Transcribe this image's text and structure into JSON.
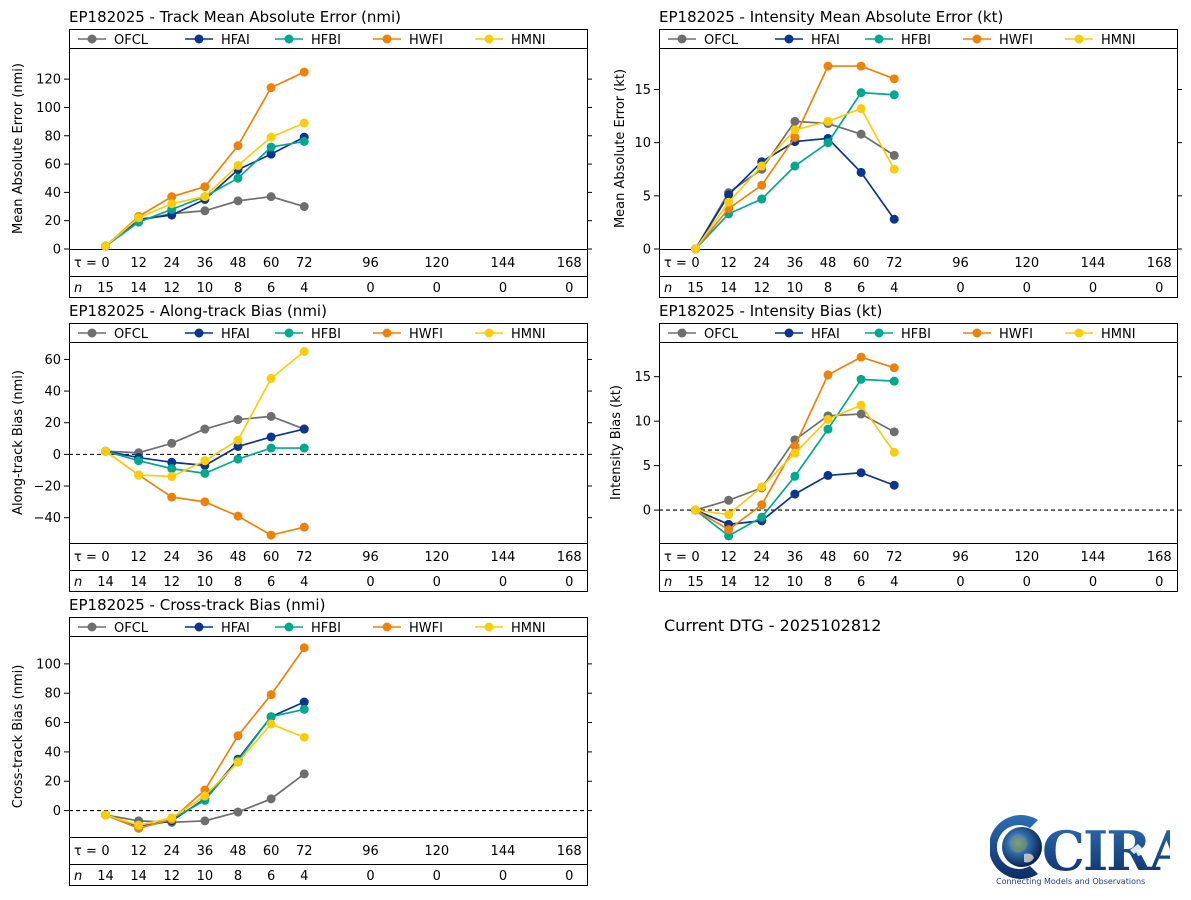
{
  "dtg_text": "Current DTG - 2025102812",
  "logo": {
    "word": "CIRA",
    "tagline": "Connecting Models and Observations"
  },
  "tau_label": "τ = ",
  "n_label": "n",
  "tau": [
    0,
    12,
    24,
    36,
    48,
    60,
    72,
    96,
    120,
    144,
    168
  ],
  "models": [
    {
      "name": "OFCL",
      "color": "#6e6e6e"
    },
    {
      "name": "HFAI",
      "color": "#0a3590"
    },
    {
      "name": "HFBI",
      "color": "#00a88f"
    },
    {
      "name": "HWFI",
      "color": "#ee8208"
    },
    {
      "name": "HMNI",
      "color": "#fccc0a"
    }
  ],
  "chart_data": [
    {
      "id": "track",
      "type": "line",
      "title": "EP182025 - Track Mean Absolute Error (nmi)",
      "ylabel": "Mean Absolute Error (nmi)",
      "x": [
        0,
        12,
        24,
        36,
        48,
        60,
        72
      ],
      "ylim": [
        0,
        142
      ],
      "yticks": [
        0,
        20,
        40,
        60,
        80,
        100,
        120
      ],
      "zero_line": false,
      "n": [
        15,
        14,
        12,
        10,
        8,
        6,
        4,
        0,
        0,
        0,
        0
      ],
      "series": [
        {
          "name": "OFCL",
          "values": [
            2,
            20,
            25,
            27,
            34,
            37,
            30
          ]
        },
        {
          "name": "HFAI",
          "values": [
            2,
            21,
            24,
            35,
            56,
            67,
            79
          ]
        },
        {
          "name": "HFBI",
          "values": [
            2,
            19,
            28,
            37,
            50,
            72,
            76
          ]
        },
        {
          "name": "HWFI",
          "values": [
            2,
            23,
            37,
            44,
            73,
            114,
            125
          ]
        },
        {
          "name": "HMNI",
          "values": [
            2,
            22,
            32,
            37,
            59,
            79,
            89
          ]
        }
      ]
    },
    {
      "id": "intensity",
      "type": "line",
      "title": "EP182025 - Intensity Mean Absolute Error (kt)",
      "ylabel": "Mean Absolute Error (kt)",
      "x": [
        0,
        12,
        24,
        36,
        48,
        60,
        72
      ],
      "ylim": [
        0,
        18.9
      ],
      "yticks": [
        0,
        5,
        10,
        15
      ],
      "zero_line": false,
      "n": [
        15,
        14,
        12,
        10,
        8,
        6,
        4,
        0,
        0,
        0,
        0
      ],
      "series": [
        {
          "name": "OFCL",
          "values": [
            0,
            5.3,
            7.5,
            12.0,
            11.8,
            10.8,
            8.8
          ]
        },
        {
          "name": "HFAI",
          "values": [
            0,
            5.1,
            8.2,
            10.1,
            10.4,
            7.2,
            2.8
          ]
        },
        {
          "name": "HFBI",
          "values": [
            0,
            3.3,
            4.7,
            7.8,
            10.0,
            14.7,
            14.5
          ]
        },
        {
          "name": "HWFI",
          "values": [
            0,
            3.8,
            6.0,
            10.5,
            17.2,
            17.2,
            16.0
          ]
        },
        {
          "name": "HMNI",
          "values": [
            0,
            4.4,
            7.8,
            11.2,
            12.0,
            13.2,
            7.5
          ]
        }
      ]
    },
    {
      "id": "along",
      "type": "line",
      "title": "EP182025 - Along-track Bias (nmi)",
      "ylabel": "Along-track Bias (nmi)",
      "x": [
        0,
        12,
        24,
        36,
        48,
        60,
        72
      ],
      "ylim": [
        -56,
        71
      ],
      "yticks": [
        -40,
        -20,
        0,
        20,
        40,
        60
      ],
      "zero_line": true,
      "n": [
        14,
        14,
        12,
        10,
        8,
        6,
        4,
        0,
        0,
        0,
        0
      ],
      "series": [
        {
          "name": "OFCL",
          "values": [
            2,
            1,
            7,
            16,
            22,
            24,
            16
          ]
        },
        {
          "name": "HFAI",
          "values": [
            2,
            -2,
            -5,
            -7,
            5,
            11,
            16
          ]
        },
        {
          "name": "HFBI",
          "values": [
            2,
            -4,
            -9,
            -12,
            -3,
            4,
            4
          ]
        },
        {
          "name": "HWFI",
          "values": [
            2,
            -13,
            -27,
            -30,
            -39,
            -51,
            -46
          ]
        },
        {
          "name": "HMNI",
          "values": [
            2,
            -13,
            -14,
            -4,
            9,
            48,
            65
          ]
        }
      ]
    },
    {
      "id": "intbias",
      "type": "line",
      "title": "EP182025 - Intensity Bias (kt)",
      "ylabel": "Intensity Bias (kt)",
      "x": [
        0,
        12,
        24,
        36,
        48,
        60,
        72
      ],
      "ylim": [
        -3.7,
        18.9
      ],
      "yticks": [
        0,
        5,
        10,
        15
      ],
      "zero_line": true,
      "n": [
        15,
        14,
        12,
        10,
        8,
        6,
        4,
        0,
        0,
        0,
        0
      ],
      "series": [
        {
          "name": "OFCL",
          "values": [
            0,
            1.1,
            2.5,
            7.9,
            10.6,
            10.8,
            8.8
          ]
        },
        {
          "name": "HFAI",
          "values": [
            0,
            -1.6,
            -1.2,
            1.8,
            3.9,
            4.2,
            2.8
          ]
        },
        {
          "name": "HFBI",
          "values": [
            0,
            -2.9,
            -0.8,
            3.8,
            9.1,
            14.7,
            14.5
          ]
        },
        {
          "name": "HWFI",
          "values": [
            0,
            -2.2,
            0.6,
            7.2,
            15.2,
            17.2,
            16.0
          ]
        },
        {
          "name": "HMNI",
          "values": [
            0,
            -0.5,
            2.6,
            6.4,
            10.2,
            11.8,
            6.5
          ]
        }
      ]
    },
    {
      "id": "cross",
      "type": "line",
      "title": "EP182025 - Cross-track Bias (nmi)",
      "ylabel": "Cross-track Bias (nmi)",
      "x": [
        0,
        12,
        24,
        36,
        48,
        60,
        72
      ],
      "ylim": [
        -18,
        119
      ],
      "yticks": [
        0,
        20,
        40,
        60,
        80,
        100
      ],
      "zero_line": true,
      "n": [
        14,
        14,
        12,
        10,
        8,
        6,
        4,
        0,
        0,
        0,
        0
      ],
      "series": [
        {
          "name": "OFCL",
          "values": [
            -3,
            -7,
            -8,
            -7,
            -1,
            8,
            25
          ]
        },
        {
          "name": "HFAI",
          "values": [
            -3,
            -11,
            -7,
            8,
            35,
            64,
            74
          ]
        },
        {
          "name": "HFBI",
          "values": [
            -3,
            -12,
            -6,
            7,
            34,
            64,
            69
          ]
        },
        {
          "name": "HWFI",
          "values": [
            -3,
            -12,
            -6,
            14,
            51,
            79,
            111
          ]
        },
        {
          "name": "HMNI",
          "values": [
            -3,
            -10,
            -5,
            10,
            33,
            59,
            50
          ]
        }
      ]
    }
  ]
}
